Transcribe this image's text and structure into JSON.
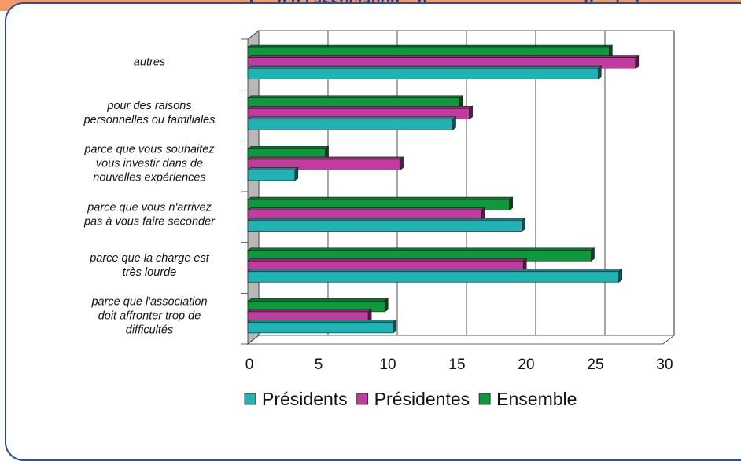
{
  "header": {
    "title_fragment": "...r ... n d l'association... p ... ... ... ... ... ... ... ... ...g ... (...)"
  },
  "chart_data": {
    "type": "bar",
    "orientation": "horizontal",
    "three_d": true,
    "categories": [
      [
        "autres"
      ],
      [
        "pour des raisons",
        "personnelles ou familiales"
      ],
      [
        "parce que vous souhaitez",
        "vous investir dans de",
        "nouvelles expériences"
      ],
      [
        "parce que vous n'arrivez",
        "pas à vous faire seconder"
      ],
      [
        "parce que la charge est",
        "très lourde"
      ],
      [
        "parce que l'association",
        "doit affronter trop de",
        "difficultés"
      ]
    ],
    "series": [
      {
        "name": "Présidents",
        "color": "#1fb3b3",
        "values": [
          25.3,
          14.8,
          3.4,
          19.8,
          26.8,
          10.5
        ]
      },
      {
        "name": "Présidentes",
        "color": "#c23b9e",
        "values": [
          28.0,
          16.0,
          11.0,
          16.9,
          19.9,
          8.7
        ]
      },
      {
        "name": "Ensemble",
        "color": "#0e9a3c",
        "values": [
          26.1,
          15.3,
          5.6,
          18.9,
          24.8,
          9.9
        ]
      }
    ],
    "xlim": [
      0,
      30
    ],
    "xticks": [
      "0",
      "5",
      "10",
      "15",
      "20",
      "25",
      "30"
    ],
    "grid": true,
    "legend_position": "bottom"
  }
}
